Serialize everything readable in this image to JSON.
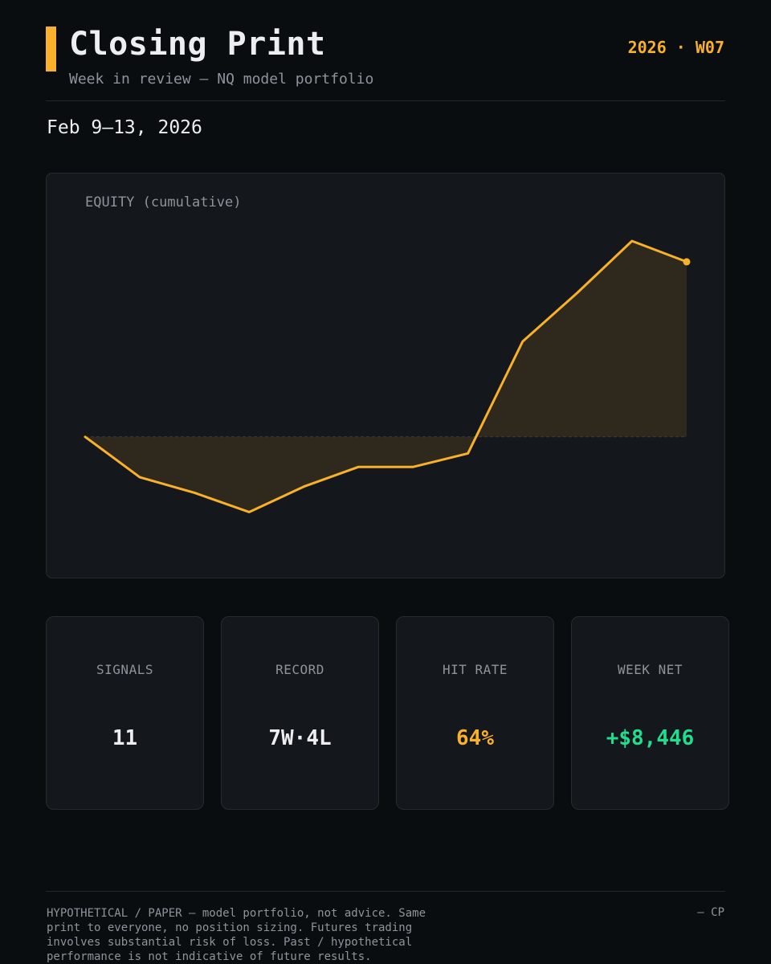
{
  "header": {
    "title": "Closing Print",
    "subtitle": "Week in review — NQ model portfolio",
    "week_tag": "2026 · W07",
    "date_range": "Feb 9–13, 2026"
  },
  "chart_data": {
    "type": "area",
    "title": "EQUITY (cumulative)",
    "x": [
      0,
      1,
      2,
      3,
      4,
      5,
      6,
      7,
      8,
      9,
      10,
      11
    ],
    "values": [
      0,
      -1950,
      -2700,
      -3630,
      -2400,
      -1450,
      -1450,
      -800,
      4600,
      6950,
      9450,
      8446
    ],
    "baseline": 0,
    "ylim": [
      -5900,
      11000
    ],
    "grid": false,
    "legend": "none",
    "colors": {
      "line": "#f9b02a",
      "fill": "#2f281d",
      "baseline": "#3a3d40"
    }
  },
  "stats": [
    {
      "label": "SIGNALS",
      "value": "11",
      "style": "default"
    },
    {
      "label": "RECORD",
      "value": "7W·4L",
      "style": "default"
    },
    {
      "label": "HIT RATE",
      "value": "64%",
      "style": "amber"
    },
    {
      "label": "WEEK NET",
      "value": "+$8,446",
      "style": "green"
    }
  ],
  "footer": {
    "disclaimer": "HYPOTHETICAL / PAPER — model portfolio, not advice. Same print to everyone, no position sizing. Futures trading involves substantial risk of loss. Past / hypothetical performance is not indicative of future results.",
    "signature": "— CP"
  },
  "colors": {
    "accent": "#f9b02a",
    "positive": "#22dd8c",
    "background": "#0a0d10",
    "card": "#14171b"
  }
}
